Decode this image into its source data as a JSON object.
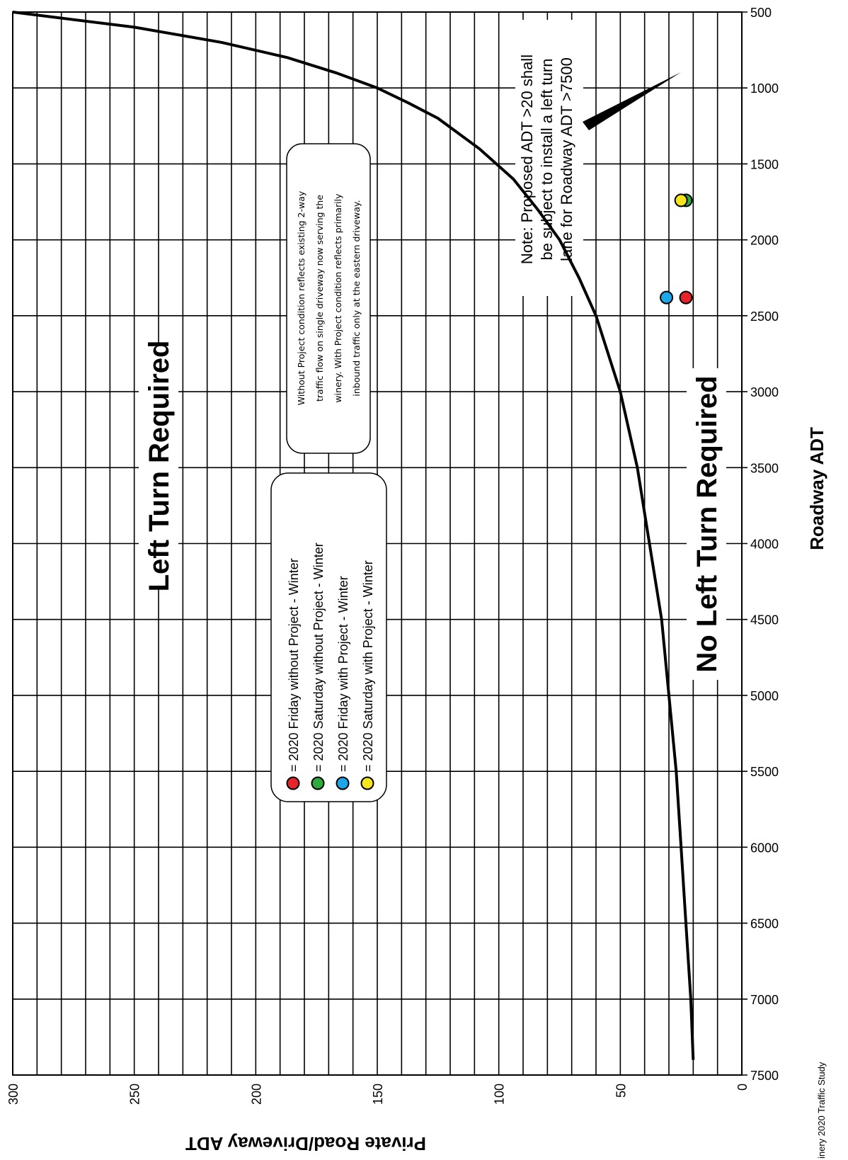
{
  "chart_data": {
    "type": "line",
    "xlabel": "Roadway ADT",
    "ylabel": "Private Road/Driveway ADT",
    "xlim": [
      500,
      7500
    ],
    "ylim": [
      0,
      300
    ],
    "x_ticks": [
      "500",
      "1000",
      "1500",
      "2000",
      "2500",
      "3000",
      "3500",
      "4000",
      "4500",
      "5000",
      "5500",
      "6000",
      "6500",
      "7000",
      "7500"
    ],
    "y_ticks": [
      "0",
      "50",
      "100",
      "150",
      "200",
      "250",
      "300"
    ],
    "grid": true,
    "curve": {
      "x": [
        500,
        600,
        700,
        800,
        900,
        1000,
        1100,
        1200,
        1400,
        1600,
        1800,
        2000,
        2250,
        2500,
        3000,
        3500,
        4000,
        4500,
        5000,
        5500,
        6000,
        6500,
        7000,
        7400
      ],
      "y": [
        300,
        250,
        214,
        187,
        167,
        150,
        137,
        125,
        108,
        94,
        84,
        75,
        67,
        60,
        50,
        43,
        38,
        33,
        30,
        27,
        25,
        23,
        21,
        20
      ]
    },
    "points": [
      {
        "legend_index": 0,
        "x": 2380,
        "y": 23,
        "color": "#e8242b"
      },
      {
        "legend_index": 1,
        "x": 1740,
        "y": 23,
        "color": "#2eaa3f"
      },
      {
        "legend_index": 2,
        "x": 2380,
        "y": 31,
        "color": "#1ea7e8"
      },
      {
        "legend_index": 3,
        "x": 1740,
        "y": 25,
        "color": "#f5e51b"
      }
    ],
    "legend": [
      {
        "label": "= 2020 Friday without Project - Winter",
        "color": "#e8242b"
      },
      {
        "label": "= 2020 Saturday without Project - Winter",
        "color": "#2eaa3f"
      },
      {
        "label": "= 2020 Friday with Project - Winter",
        "color": "#1ea7e8"
      },
      {
        "label": "= 2020 Saturday with Project - Winter",
        "color": "#f5e51b"
      }
    ],
    "region_labels": {
      "above": "Left Turn Required",
      "below": "No Left Turn Required"
    },
    "note_lines": [
      "Note: Proposed ADT >20 shall",
      "be subject to install a left turn",
      "lane for Roadway ADT >7500"
    ],
    "info_box_lines": [
      "Without Project condition reflects existing 2-way",
      "traffic flow on single driveway now serving the",
      "winery. With Project condition reflects primarily",
      "inbound traffic only at the eastern driveway."
    ],
    "footer": "inery 2020 Traffic Study"
  }
}
